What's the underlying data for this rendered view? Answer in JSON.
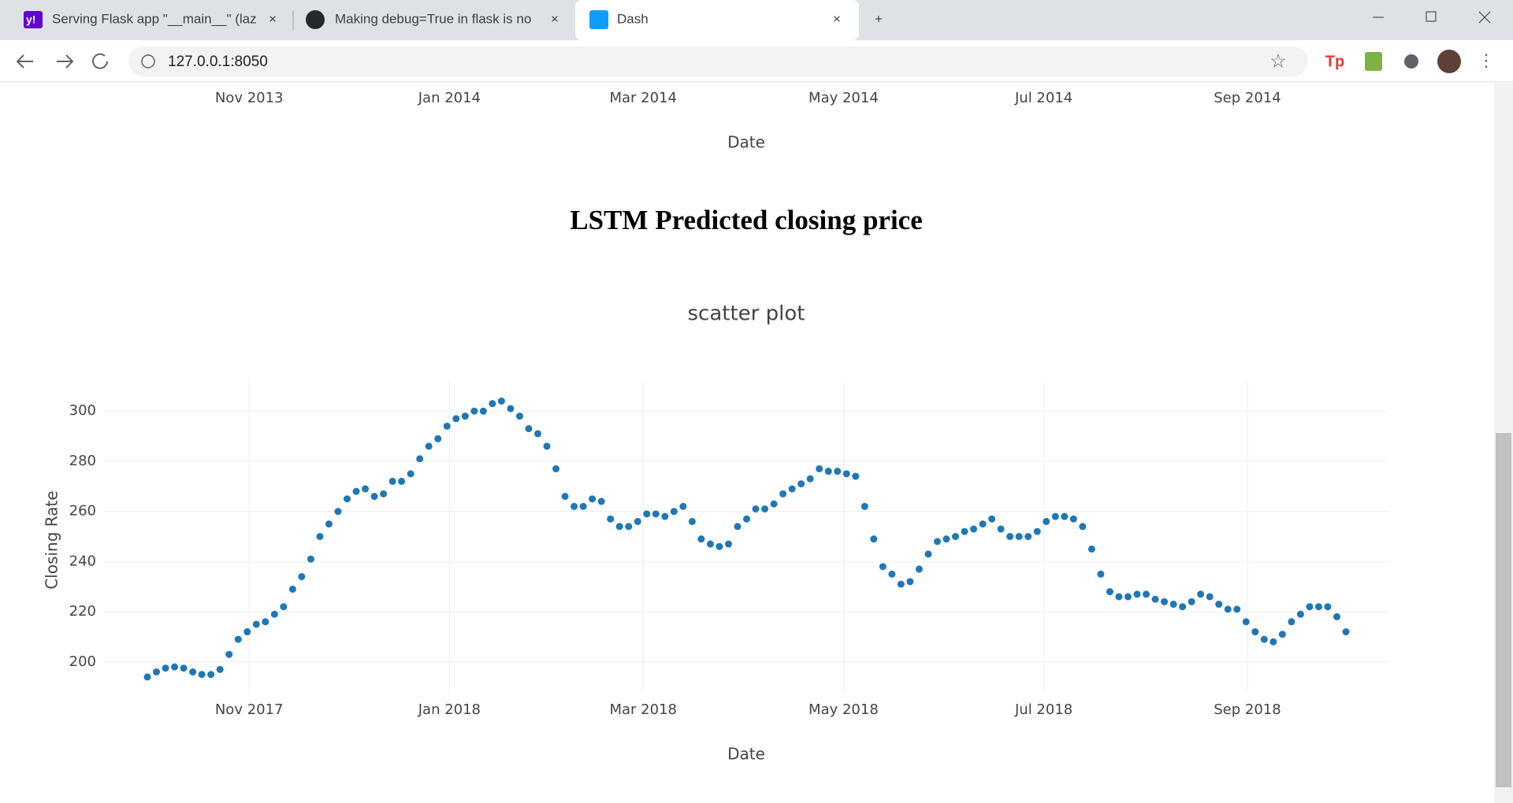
{
  "browser": {
    "tabs": [
      {
        "title": "Serving Flask app \"__main__\" (laz"
      },
      {
        "title": "Making debug=True in flask is no"
      },
      {
        "title": "Dash"
      }
    ],
    "address": "127.0.0.1:8050"
  },
  "previous_chart": {
    "xticks": [
      "Nov 2013",
      "Jan 2014",
      "Mar 2014",
      "May 2014",
      "Jul 2014",
      "Sep 2014"
    ],
    "x_title": "Date"
  },
  "heading": "LSTM Predicted closing price",
  "chart_data": {
    "type": "scatter",
    "title": "scatter plot",
    "x_title": "Date",
    "y_title": "Closing Rate",
    "xlim": [
      "2017-10",
      "2018-10"
    ],
    "xticks": [
      {
        "value": "2017-11",
        "label": "Nov 2017"
      },
      {
        "value": "2018-01",
        "label": "Jan 2018"
      },
      {
        "value": "2018-03",
        "label": "Mar 2018"
      },
      {
        "value": "2018-05",
        "label": "May 2018"
      },
      {
        "value": "2018-07",
        "label": "Jul 2018"
      },
      {
        "value": "2018-09",
        "label": "Sep 2018"
      }
    ],
    "ylim": [
      188,
      312
    ],
    "yticks": [
      200,
      220,
      240,
      260,
      280,
      300
    ],
    "grid": true,
    "color": "#1f77b4",
    "values": [
      194,
      196,
      197.5,
      198,
      197.5,
      196,
      195,
      195,
      197,
      203,
      209,
      212,
      215,
      216,
      219,
      222,
      229,
      234,
      241,
      250,
      255,
      260,
      265,
      268,
      269,
      266,
      267,
      272,
      272,
      275,
      281,
      286,
      289,
      294,
      297,
      298,
      300,
      300,
      303,
      304,
      301,
      298,
      293,
      291,
      286,
      277,
      266,
      262,
      262,
      265,
      264,
      257,
      254,
      254,
      256,
      259,
      259,
      258,
      260,
      262,
      256,
      249,
      247,
      246,
      247,
      254,
      257,
      261,
      261,
      263,
      267,
      269,
      271,
      273,
      277,
      276,
      276,
      275,
      274,
      262,
      249,
      238,
      235,
      231,
      232,
      237,
      243,
      248,
      249,
      250,
      252,
      253,
      255,
      257,
      253,
      250,
      250,
      250,
      252,
      256,
      258,
      258,
      257,
      254,
      245,
      235,
      228,
      226,
      226,
      227,
      227,
      225,
      224,
      223,
      222,
      224,
      227,
      226,
      223,
      221,
      221,
      216,
      212,
      209,
      208,
      211,
      216,
      219,
      222,
      222,
      222,
      218,
      212
    ]
  }
}
